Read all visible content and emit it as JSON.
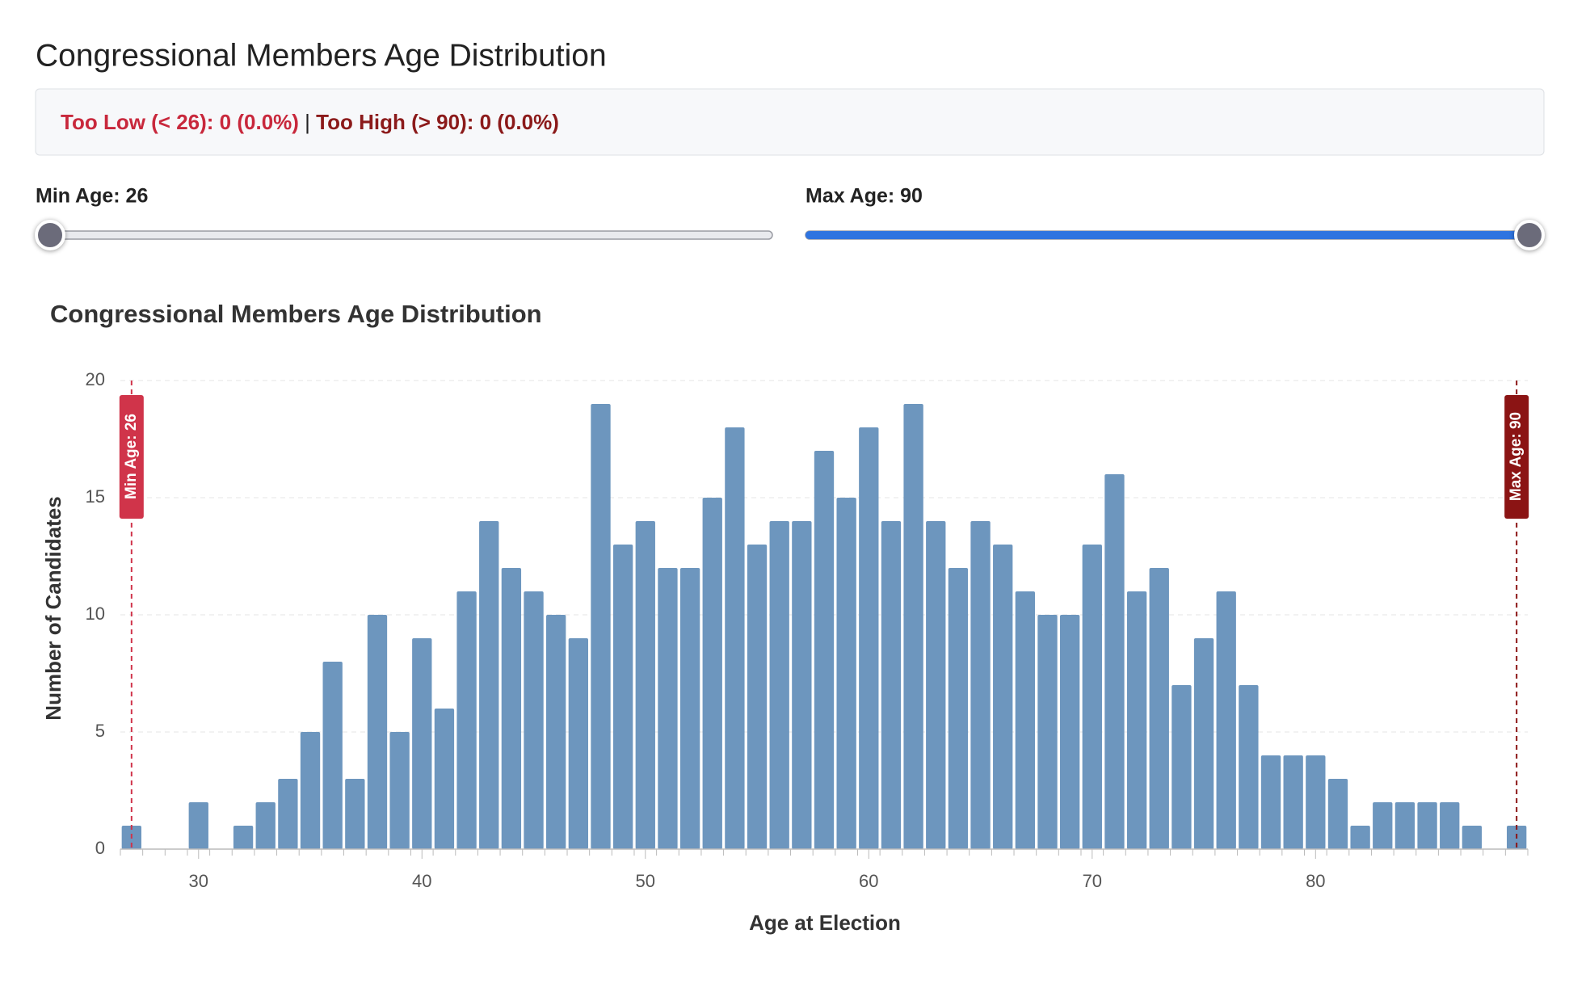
{
  "header": {
    "title": "Congressional Members Age Distribution"
  },
  "status": {
    "too_low": "Too Low (< 26): 0 (0.0%)",
    "separator": "|",
    "too_high": "Too High (> 90): 0 (0.0%)"
  },
  "controls": {
    "min_label": "Min Age: 26",
    "max_label": "Max Age: 90",
    "min_value": 26,
    "max_value": 90,
    "slider_range": [
      26,
      90
    ]
  },
  "chart_data": {
    "type": "histogram",
    "title": "Congressional Members Age Distribution",
    "xlabel": "Age at Election",
    "ylabel": "Number of Candidates",
    "color": "#6d96be",
    "bins": [
      26.5,
      27.5,
      28.5,
      29.5,
      30.5,
      31.5,
      32.5,
      33.5,
      34.5,
      35.5,
      36.5,
      37.5,
      38.5,
      39.5,
      40.5,
      41.5,
      42.5,
      43.5,
      44.5,
      45.5,
      46.5,
      47.5,
      48.5,
      49.5,
      50.5,
      51.5,
      52.5,
      53.5,
      54.5,
      55.5,
      56.5,
      57.5,
      58.5,
      59.5,
      60.5,
      61.5,
      62.5,
      63.5,
      64.5,
      65.5,
      66.5,
      67.5,
      68.5,
      69.5,
      70.5,
      71.5,
      72.5,
      73.5,
      74.5,
      75.5,
      76.5,
      77.5,
      78.5,
      79.5,
      80.5,
      81.5,
      82.5,
      83.5,
      84.5,
      85.5,
      86.5,
      87.5,
      88.5,
      89.5
    ],
    "values": [
      1,
      0,
      0,
      2,
      0,
      1,
      2,
      3,
      5,
      8,
      3,
      10,
      5,
      9,
      6,
      11,
      14,
      12,
      11,
      10,
      9,
      19,
      13,
      14,
      12,
      12,
      15,
      18,
      13,
      14,
      14,
      17,
      15,
      18,
      14,
      19,
      14,
      12,
      14,
      13,
      11,
      10,
      10,
      13,
      16,
      11,
      12,
      7,
      9,
      11,
      7,
      4,
      4,
      4,
      3,
      1,
      2,
      2,
      2,
      2,
      1,
      0,
      1
    ],
    "xlim": [
      26.5,
      89.5
    ],
    "ylim": [
      0,
      20
    ],
    "xticks": [
      30,
      40,
      50,
      60,
      70,
      80
    ],
    "yticks": [
      0,
      5,
      10,
      15,
      20
    ],
    "grid": true,
    "reference_lines": [
      {
        "x": 27,
        "label": "Min Age: 26",
        "color": "#d0344a"
      },
      {
        "x": 89,
        "label": "Max Age: 90",
        "color": "#8b1414"
      }
    ]
  }
}
